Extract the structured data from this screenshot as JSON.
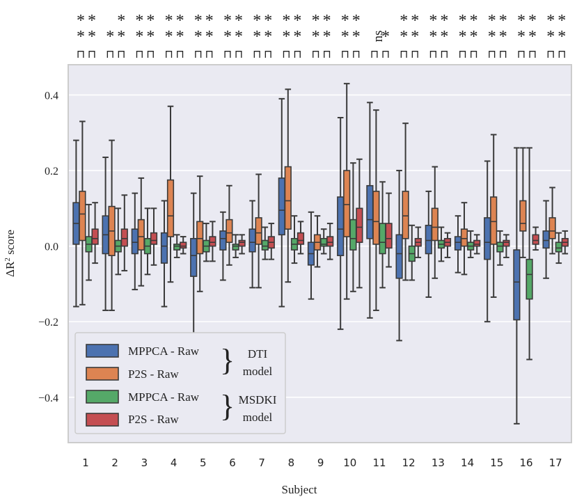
{
  "chart_data": {
    "type": "box",
    "xlabel": "Subject",
    "ylabel_prefix": "ΔR",
    "ylabel_sup": "2",
    "ylabel_suffix": " score",
    "ylim": [
      -0.52,
      0.48
    ],
    "yticks": [
      0.4,
      0.2,
      0.0,
      -0.2,
      -0.4
    ],
    "ytick_labels": [
      "0.4",
      "0.2",
      "0.0",
      "−0.2",
      "−0.4"
    ],
    "categories": [
      "1",
      "2",
      "3",
      "4",
      "5",
      "6",
      "7",
      "8",
      "9",
      "10",
      "11",
      "12",
      "13",
      "14",
      "15",
      "16",
      "17"
    ],
    "series": [
      {
        "name": "MPPCA - Raw",
        "model": "DTI",
        "color": "#4c72b0",
        "boxes": [
          [
            -0.16,
            0.005,
            0.06,
            0.115,
            0.28
          ],
          [
            -0.17,
            -0.02,
            0.03,
            0.08,
            0.235
          ],
          [
            -0.115,
            -0.02,
            0.01,
            0.045,
            0.14
          ],
          [
            -0.16,
            -0.045,
            0.0,
            0.035,
            0.12
          ],
          [
            -0.23,
            -0.08,
            -0.025,
            0.02,
            0.14
          ],
          [
            -0.09,
            -0.01,
            0.02,
            0.04,
            0.09
          ],
          [
            -0.11,
            -0.015,
            0.01,
            0.045,
            0.12
          ],
          [
            -0.16,
            0.03,
            0.095,
            0.18,
            0.39
          ],
          [
            -0.14,
            -0.05,
            -0.02,
            0.01,
            0.09
          ],
          [
            -0.22,
            -0.025,
            0.045,
            0.13,
            0.34
          ],
          [
            -0.19,
            0.02,
            0.07,
            0.16,
            0.38
          ],
          [
            -0.25,
            -0.085,
            -0.02,
            0.03,
            0.2
          ],
          [
            -0.135,
            -0.02,
            0.015,
            0.055,
            0.145
          ],
          [
            -0.07,
            -0.01,
            0.01,
            0.025,
            0.08
          ],
          [
            -0.2,
            -0.035,
            0.01,
            0.075,
            0.225
          ],
          [
            -0.47,
            -0.195,
            -0.095,
            -0.01,
            0.26
          ],
          [
            -0.085,
            -0.005,
            0.015,
            0.04,
            0.12
          ]
        ]
      },
      {
        "name": "P2S - Raw",
        "model": "DTI",
        "color": "#dd8452",
        "boxes": [
          [
            -0.155,
            0.015,
            0.085,
            0.145,
            0.33
          ],
          [
            -0.17,
            -0.025,
            0.04,
            0.105,
            0.28
          ],
          [
            -0.105,
            -0.01,
            0.025,
            0.07,
            0.18
          ],
          [
            -0.095,
            0.025,
            0.08,
            0.175,
            0.37
          ],
          [
            -0.12,
            -0.02,
            0.02,
            0.065,
            0.185
          ],
          [
            -0.05,
            0.01,
            0.035,
            0.07,
            0.16
          ],
          [
            -0.11,
            0.005,
            0.035,
            0.075,
            0.19
          ],
          [
            -0.095,
            0.045,
            0.12,
            0.21,
            0.415
          ],
          [
            -0.055,
            -0.01,
            0.01,
            0.03,
            0.08
          ],
          [
            -0.14,
            0.025,
            0.11,
            0.2,
            0.43
          ],
          [
            -0.17,
            0.005,
            0.065,
            0.145,
            0.36
          ],
          [
            -0.09,
            0.02,
            0.08,
            0.145,
            0.325
          ],
          [
            -0.085,
            0.015,
            0.05,
            0.1,
            0.21
          ],
          [
            -0.075,
            0.0,
            0.02,
            0.045,
            0.115
          ],
          [
            -0.135,
            0.005,
            0.065,
            0.13,
            0.295
          ],
          [
            -0.03,
            0.04,
            0.06,
            0.12,
            0.26
          ],
          [
            -0.02,
            0.02,
            0.04,
            0.075,
            0.155
          ]
        ]
      },
      {
        "name": "MPPCA - Raw",
        "model": "MSDKI",
        "color": "#55a868",
        "boxes": [
          [
            -0.09,
            -0.015,
            0.005,
            0.025,
            0.11
          ],
          [
            -0.075,
            -0.015,
            0.0,
            0.015,
            0.1
          ],
          [
            -0.075,
            -0.02,
            0.0,
            0.02,
            0.1
          ],
          [
            -0.03,
            -0.01,
            0.0,
            0.005,
            0.03
          ],
          [
            -0.04,
            -0.015,
            0.0,
            0.015,
            0.06
          ],
          [
            -0.03,
            -0.01,
            0.0,
            0.005,
            0.03
          ],
          [
            -0.035,
            -0.01,
            0.0,
            0.015,
            0.05
          ],
          [
            -0.045,
            -0.01,
            0.005,
            0.02,
            0.08
          ],
          [
            -0.02,
            0.0,
            0.005,
            0.02,
            0.045
          ],
          [
            -0.12,
            -0.01,
            0.02,
            0.07,
            0.22
          ],
          [
            -0.11,
            -0.02,
            0.01,
            0.06,
            0.17
          ],
          [
            -0.09,
            -0.04,
            -0.02,
            0.0,
            0.055
          ],
          [
            -0.04,
            -0.005,
            0.005,
            0.015,
            0.05
          ],
          [
            -0.03,
            -0.01,
            0.0,
            0.01,
            0.04
          ],
          [
            -0.05,
            -0.015,
            0.0,
            0.01,
            0.04
          ],
          [
            -0.3,
            -0.14,
            -0.075,
            -0.035,
            0.26
          ],
          [
            -0.045,
            -0.015,
            -0.005,
            0.01,
            0.035
          ]
        ]
      },
      {
        "name": "P2S - Raw",
        "model": "MSDKI",
        "color": "#c44e52",
        "boxes": [
          [
            -0.045,
            0.005,
            0.02,
            0.045,
            0.115
          ],
          [
            -0.065,
            0.0,
            0.02,
            0.045,
            0.135
          ],
          [
            -0.05,
            0.005,
            0.015,
            0.035,
            0.1
          ],
          [
            -0.02,
            -0.005,
            0.0,
            0.01,
            0.025
          ],
          [
            -0.04,
            0.0,
            0.01,
            0.025,
            0.065
          ],
          [
            -0.02,
            0.0,
            0.01,
            0.015,
            0.03
          ],
          [
            -0.035,
            -0.005,
            0.01,
            0.025,
            0.06
          ],
          [
            -0.02,
            0.005,
            0.015,
            0.035,
            0.065
          ],
          [
            -0.035,
            0.0,
            0.01,
            0.025,
            0.06
          ],
          [
            -0.11,
            0.01,
            0.05,
            0.1,
            0.23
          ],
          [
            -0.055,
            -0.005,
            0.02,
            0.06,
            0.14
          ],
          [
            -0.03,
            0.0,
            0.01,
            0.02,
            0.05
          ],
          [
            -0.03,
            0.0,
            0.01,
            0.02,
            0.035
          ],
          [
            -0.02,
            0.0,
            0.005,
            0.015,
            0.03
          ],
          [
            -0.03,
            0.0,
            0.01,
            0.015,
            0.03
          ],
          [
            -0.01,
            0.005,
            0.015,
            0.03,
            0.05
          ],
          [
            -0.02,
            0.0,
            0.01,
            0.02,
            0.04
          ]
        ]
      }
    ],
    "significance": {
      "rows": [
        [
          "**",
          "*",
          "**",
          "**",
          "**",
          "**",
          "**",
          "**",
          "**",
          "**",
          "ns",
          "**",
          "**",
          "**",
          "**",
          "**",
          "**"
        ],
        [
          "**",
          "**",
          "**",
          "**",
          "**",
          "**",
          "**",
          "**",
          "**",
          "**",
          "*",
          "**",
          "**",
          "**",
          "**",
          "**",
          "**"
        ]
      ],
      "glyph": "⊓"
    },
    "legend": {
      "location": "bottom-left",
      "entries": [
        "MPPCA - Raw",
        "P2S - Raw",
        "MPPCA - Raw",
        "P2S - Raw"
      ],
      "brace": "}",
      "group_labels": [
        {
          "line1": "DTI",
          "line2": "model"
        },
        {
          "line1": "MSDKI",
          "line2": "model"
        }
      ]
    }
  }
}
